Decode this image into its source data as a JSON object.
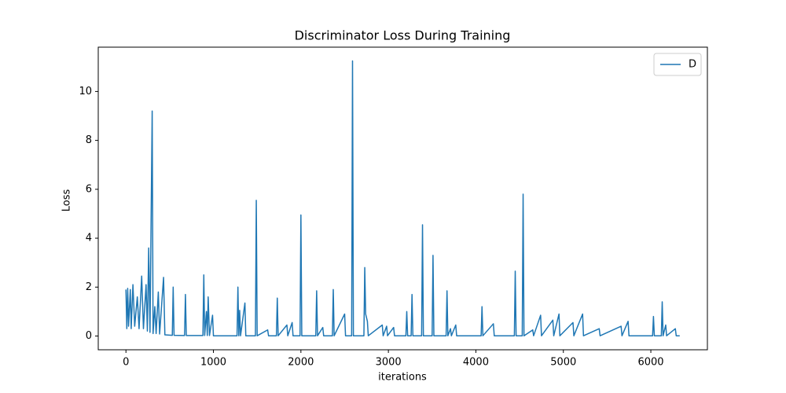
{
  "chart_data": {
    "type": "line",
    "title": "Discriminator Loss During Training",
    "xlabel": "iterations",
    "ylabel": "Loss",
    "x": [
      0,
      10,
      20,
      30,
      50,
      60,
      80,
      100,
      130,
      150,
      180,
      200,
      230,
      245,
      260,
      275,
      300,
      310,
      330,
      345,
      370,
      385,
      430,
      445,
      530,
      540,
      550,
      670,
      680,
      690,
      880,
      890,
      900,
      920,
      930,
      940,
      955,
      990,
      1000,
      1270,
      1280,
      1290,
      1300,
      1310,
      1360,
      1370,
      1480,
      1490,
      1500,
      1620,
      1630,
      1720,
      1730,
      1740,
      1840,
      1850,
      1900,
      1910,
      1990,
      2000,
      2010,
      2170,
      2180,
      2190,
      2250,
      2260,
      2360,
      2370,
      2380,
      2500,
      2510,
      2580,
      2590,
      2600,
      2720,
      2730,
      2740,
      2760,
      2770,
      2930,
      2940,
      2980,
      2990,
      3060,
      3070,
      3200,
      3210,
      3220,
      3260,
      3270,
      3280,
      3380,
      3390,
      3400,
      3500,
      3510,
      3520,
      3660,
      3670,
      3680,
      3710,
      3720,
      3770,
      3780,
      4060,
      4070,
      4080,
      4200,
      4210,
      4440,
      4450,
      4460,
      4530,
      4540,
      4550,
      4650,
      4660,
      4740,
      4750,
      4880,
      4890,
      4950,
      4960,
      5110,
      5120,
      5220,
      5230,
      5410,
      5420,
      5660,
      5670,
      5740,
      5750,
      6020,
      6030,
      6040,
      6120,
      6130,
      6140,
      6170,
      6180,
      6280,
      6290,
      6330
    ],
    "series": [
      {
        "name": "D",
        "color": "#1f77b4",
        "values": [
          1.9,
          0.3,
          1.95,
          0.4,
          1.9,
          0.3,
          2.1,
          0.4,
          1.6,
          0.3,
          2.45,
          0.3,
          2.1,
          0.2,
          3.6,
          0.15,
          9.2,
          0.1,
          1.2,
          0.1,
          1.8,
          0.08,
          2.4,
          0.05,
          0.03,
          2.0,
          0.03,
          0.02,
          1.7,
          0.02,
          0.02,
          2.5,
          0.02,
          1.0,
          0.02,
          1.6,
          0.02,
          0.85,
          0.01,
          0.01,
          2.0,
          0.01,
          1.05,
          0.01,
          1.35,
          0.01,
          0.01,
          5.55,
          0.01,
          0.25,
          0.01,
          0.01,
          1.55,
          0.01,
          0.45,
          0.01,
          0.55,
          0.01,
          0.01,
          4.95,
          0.01,
          0.01,
          1.85,
          0.01,
          0.35,
          0.01,
          0.01,
          1.9,
          0.01,
          0.9,
          0.01,
          0.01,
          11.25,
          0.01,
          0.01,
          2.8,
          0.9,
          0.6,
          0.01,
          0.45,
          0.01,
          0.4,
          0.01,
          0.35,
          0.01,
          0.01,
          1.0,
          0.01,
          0.01,
          1.7,
          0.01,
          0.01,
          4.55,
          0.01,
          0.01,
          3.3,
          0.01,
          0.01,
          1.85,
          0.01,
          0.3,
          0.01,
          0.45,
          0.01,
          0.01,
          1.2,
          0.01,
          0.5,
          0.01,
          0.01,
          2.65,
          0.01,
          0.01,
          5.8,
          0.01,
          0.25,
          0.01,
          0.85,
          0.01,
          0.65,
          0.01,
          0.9,
          0.01,
          0.55,
          0.01,
          0.9,
          0.01,
          0.3,
          0.01,
          0.4,
          0.01,
          0.6,
          0.01,
          0.01,
          0.8,
          0.01,
          0.01,
          1.4,
          0.01,
          0.45,
          0.01,
          0.3,
          0.01,
          0.01
        ]
      }
    ],
    "xlim": [
      -316.5,
      6646.5
    ],
    "xticks": [
      0,
      1000,
      2000,
      3000,
      4000,
      5000,
      6000
    ],
    "ylim": [
      -0.5625,
      11.8125
    ],
    "yticks": [
      0,
      2,
      4,
      6,
      8,
      10
    ],
    "grid": false,
    "legend": "upper right"
  }
}
